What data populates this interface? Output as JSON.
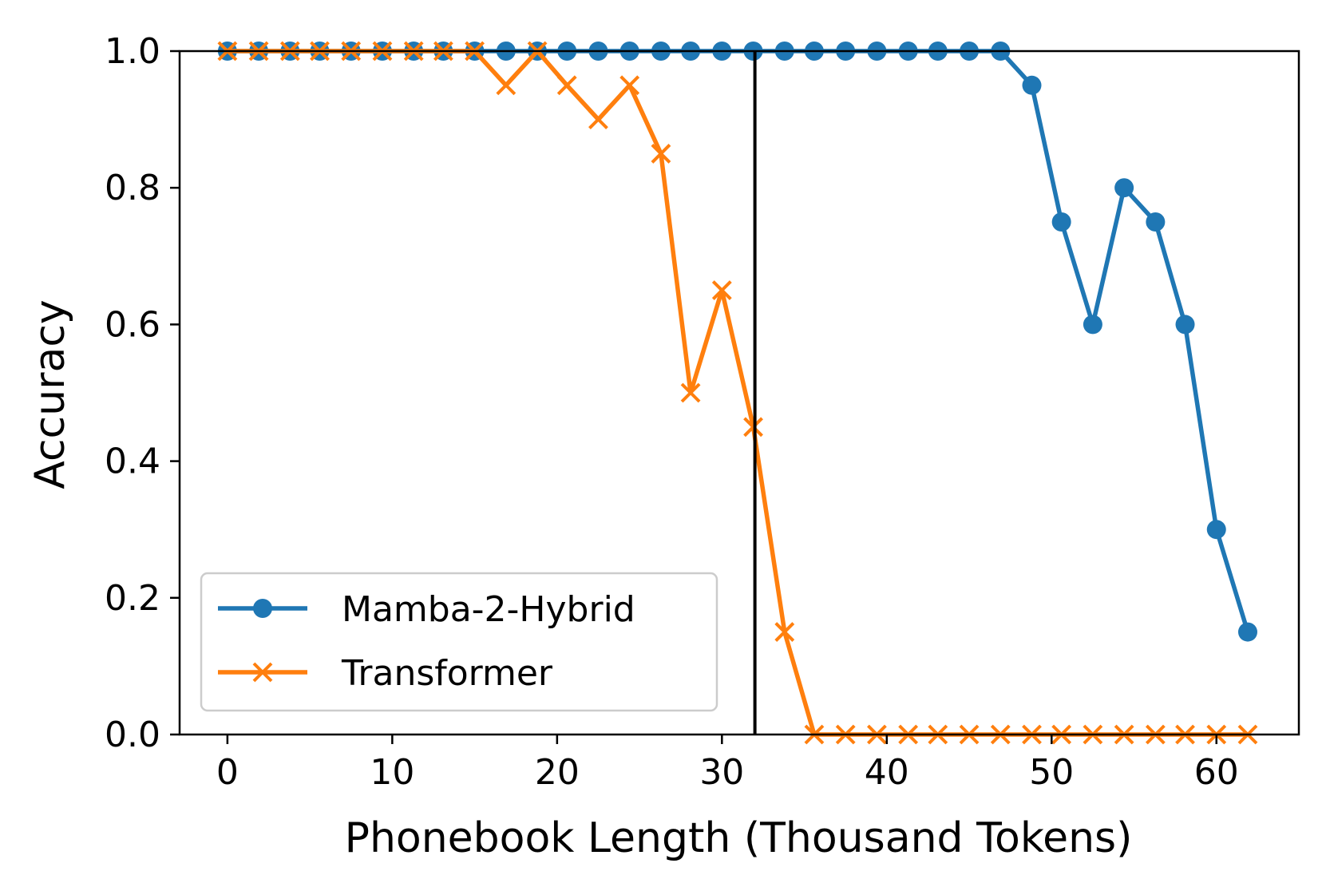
{
  "chart_data": {
    "type": "line",
    "xlabel": "Phonebook Length (Thousand Tokens)",
    "ylabel": "Accuracy",
    "xlim": [
      -2.9,
      65.0
    ],
    "ylim": [
      0.0,
      1.0
    ],
    "xticks": [
      "0",
      "10",
      "20",
      "30",
      "40",
      "50",
      "60"
    ],
    "yticks": [
      "0.0",
      "0.2",
      "0.4",
      "0.6",
      "0.8",
      "1.0"
    ],
    "grid": false,
    "legend_position": "lower-left",
    "reference_line_x": 32,
    "x": [
      0,
      1.9,
      3.8,
      5.6,
      7.5,
      9.4,
      11.3,
      13.1,
      15.0,
      16.9,
      18.8,
      20.6,
      22.5,
      24.4,
      26.3,
      28.1,
      30.0,
      31.9,
      33.8,
      35.6,
      37.5,
      39.4,
      41.3,
      43.1,
      45.0,
      46.9,
      48.8,
      50.6,
      52.5,
      54.4,
      56.3,
      58.1,
      60.0,
      61.9
    ],
    "series": [
      {
        "name": "Mamba-2-Hybrid",
        "color": "#1f77b4",
        "marker": "circle",
        "values": [
          1.0,
          1.0,
          1.0,
          1.0,
          1.0,
          1.0,
          1.0,
          1.0,
          1.0,
          1.0,
          1.0,
          1.0,
          1.0,
          1.0,
          1.0,
          1.0,
          1.0,
          1.0,
          1.0,
          1.0,
          1.0,
          1.0,
          1.0,
          1.0,
          1.0,
          1.0,
          0.95,
          0.75,
          0.6,
          0.8,
          0.75,
          0.6,
          0.3,
          0.15
        ]
      },
      {
        "name": "Transformer",
        "color": "#ff7f0e",
        "marker": "x",
        "values": [
          1.0,
          1.0,
          1.0,
          1.0,
          1.0,
          1.0,
          1.0,
          1.0,
          1.0,
          0.95,
          1.0,
          0.95,
          0.9,
          0.95,
          0.85,
          0.5,
          0.65,
          0.45,
          0.15,
          0.0,
          0.0,
          0.0,
          0.0,
          0.0,
          0.0,
          0.0,
          0.0,
          0.0,
          0.0,
          0.0,
          0.0,
          0.0,
          0.0,
          0.0
        ]
      }
    ]
  }
}
